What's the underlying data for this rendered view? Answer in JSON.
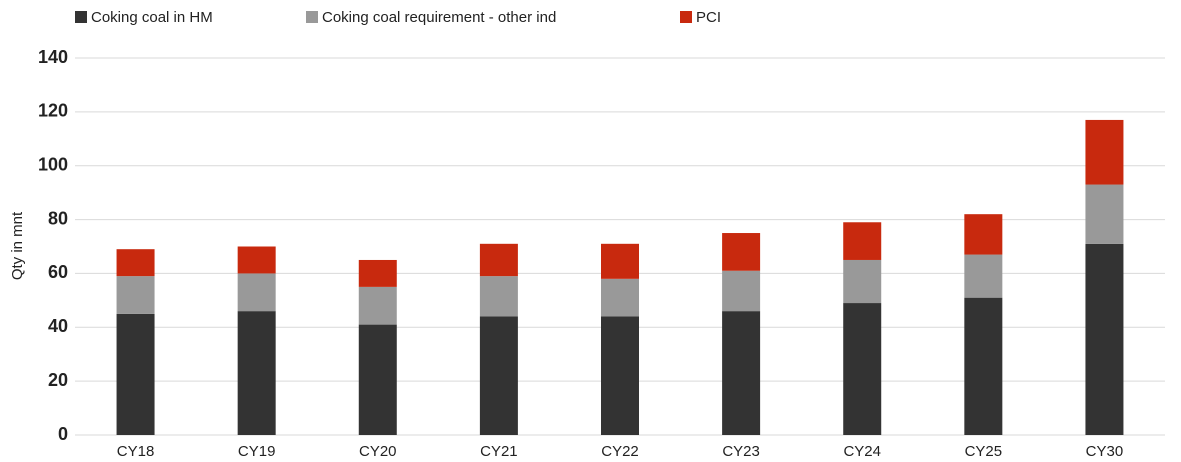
{
  "chart_data": {
    "type": "stacked_bar",
    "categories": [
      "CY18",
      "CY19",
      "CY20",
      "CY21",
      "CY22",
      "CY23",
      "CY24",
      "CY25",
      "CY30"
    ],
    "series": [
      {
        "name": "Coking coal in HM",
        "color": "#333333",
        "values": [
          45,
          46,
          41,
          44,
          44,
          46,
          49,
          51,
          71
        ]
      },
      {
        "name": "Coking coal requirement - other ind",
        "color": "#999999",
        "values": [
          14,
          14,
          14,
          15,
          14,
          15,
          16,
          16,
          22
        ]
      },
      {
        "name": "PCI",
        "color": "#c8290e",
        "values": [
          10,
          10,
          10,
          12,
          13,
          14,
          14,
          15,
          24
        ]
      }
    ],
    "y_label": "Qty in mnt",
    "ylim": [
      0,
      140
    ],
    "yticks": [
      0,
      20,
      40,
      60,
      80,
      100,
      120,
      140
    ],
    "grid": true
  }
}
